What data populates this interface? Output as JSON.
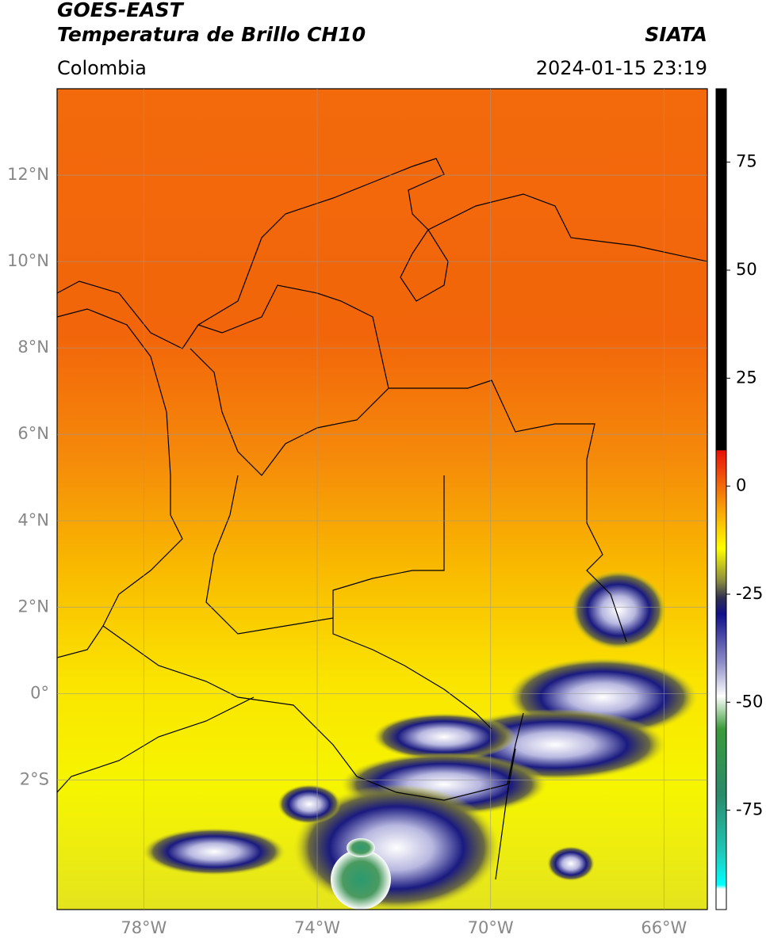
{
  "header": {
    "title": "GOES-EAST",
    "subtitle": "Temperatura de Brillo CH10",
    "region": "Colombia",
    "source": "SIATA",
    "timestamp": "2024-01-15 23:19"
  },
  "map": {
    "lonlim": [
      -80,
      -65
    ],
    "latlim": [
      -5,
      14
    ],
    "lon_ticks": [
      {
        "value": -78,
        "label": "78°W"
      },
      {
        "value": -74,
        "label": "74°W"
      },
      {
        "value": -70,
        "label": "70°W"
      },
      {
        "value": -66,
        "label": "66°W"
      }
    ],
    "lat_ticks": [
      {
        "value": 12,
        "label": "12°N"
      },
      {
        "value": 10,
        "label": "10°N"
      },
      {
        "value": 8,
        "label": "8°N"
      },
      {
        "value": 6,
        "label": "6°N"
      },
      {
        "value": 4,
        "label": "4°N"
      },
      {
        "value": 2,
        "label": "2°N"
      },
      {
        "value": 0,
        "label": "0°"
      },
      {
        "value": -2,
        "label": "2°S"
      }
    ],
    "grid": true
  },
  "colorbar": {
    "lim": [
      -98,
      92
    ],
    "ticks": [
      75,
      50,
      25,
      0,
      -25,
      -50,
      -75
    ]
  }
}
